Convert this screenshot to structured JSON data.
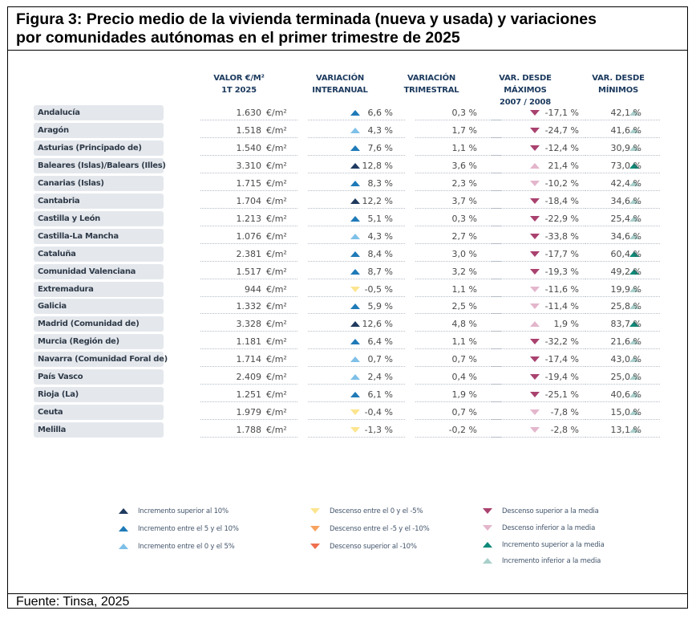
{
  "figure": {
    "title_line1": "Figura 3: Precio medio de la vivienda terminada (nueva y usada) y variaciones",
    "title_line2": "por comunidades autónomas en el primer trimestre de 2025",
    "source": "Fuente: Tinsa, 2025"
  },
  "colors": {
    "inc_gt10": "#1f3a5f",
    "inc_5_10": "#1f7ab8",
    "inc_0_5": "#7ec0e8",
    "dec_0_5": "#fde58f",
    "dec_5_10": "#f6a35e",
    "dec_gt10": "#ef6f4f",
    "dec_above_avg": "#a9426f",
    "dec_below_avg": "#e3b6cc",
    "inc_above_avg": "#0e8a7a",
    "inc_below_avg": "#a9cfcb"
  },
  "chart_data": {
    "type": "table",
    "columns": [
      {
        "line1": "VALOR €/M²",
        "line2": "1T 2025"
      },
      {
        "line1": "VARIACIÓN",
        "line2": "INTERANUAL"
      },
      {
        "line1": "VARIACIÓN",
        "line2": "TRIMESTRAL"
      },
      {
        "line1": "VAR. DESDE MÁXIMOS",
        "line2": "2007 / 2008"
      },
      {
        "line1": "VAR. DESDE",
        "line2": "MÍNIMOS"
      }
    ],
    "unit": "€/m²",
    "rows": [
      {
        "name": "Andalucía",
        "valor": "1.630",
        "interanual": "6,6 %",
        "inter_cat": "inc_5_10",
        "trimestral": "0,3 %",
        "maximos": "-17,1 %",
        "max_cat": "dec_above_avg",
        "minimos": "42,1 %",
        "min_cat": "inc_below_avg"
      },
      {
        "name": "Aragón",
        "valor": "1.518",
        "interanual": "4,3 %",
        "inter_cat": "inc_0_5",
        "trimestral": "1,7 %",
        "maximos": "-24,7 %",
        "max_cat": "dec_above_avg",
        "minimos": "41,6 %",
        "min_cat": "inc_below_avg"
      },
      {
        "name": "Asturias (Principado de)",
        "valor": "1.540",
        "interanual": "7,6 %",
        "inter_cat": "inc_5_10",
        "trimestral": "1,1 %",
        "maximos": "-12,4 %",
        "max_cat": "dec_above_avg",
        "minimos": "30,9 %",
        "min_cat": "inc_below_avg"
      },
      {
        "name": "Baleares (Islas)/Balears (Illes)",
        "valor": "3.310",
        "interanual": "12,8 %",
        "inter_cat": "inc_gt10",
        "trimestral": "3,6 %",
        "maximos": "21,4 %",
        "max_cat": "dec_below_avg",
        "max_dir": "up",
        "minimos": "73,0 %",
        "min_cat": "inc_above_avg"
      },
      {
        "name": "Canarias (Islas)",
        "valor": "1.715",
        "interanual": "8,3 %",
        "inter_cat": "inc_5_10",
        "trimestral": "2,3 %",
        "maximos": "-10,2 %",
        "max_cat": "dec_below_avg",
        "minimos": "42,4 %",
        "min_cat": "inc_below_avg"
      },
      {
        "name": "Cantabria",
        "valor": "1.704",
        "interanual": "12,2 %",
        "inter_cat": "inc_gt10",
        "trimestral": "3,7 %",
        "maximos": "-18,4 %",
        "max_cat": "dec_above_avg",
        "minimos": "34,6 %",
        "min_cat": "inc_below_avg"
      },
      {
        "name": "Castilla y León",
        "valor": "1.213",
        "interanual": "5,1 %",
        "inter_cat": "inc_5_10",
        "trimestral": "0,3 %",
        "maximos": "-22,9 %",
        "max_cat": "dec_above_avg",
        "minimos": "25,4 %",
        "min_cat": "inc_below_avg"
      },
      {
        "name": "Castilla-La Mancha",
        "valor": "1.076",
        "interanual": "4,3 %",
        "inter_cat": "inc_0_5",
        "trimestral": "2,7 %",
        "maximos": "-33,8 %",
        "max_cat": "dec_above_avg",
        "minimos": "34,6 %",
        "min_cat": "inc_below_avg"
      },
      {
        "name": "Cataluña",
        "valor": "2.381",
        "interanual": "8,4 %",
        "inter_cat": "inc_5_10",
        "trimestral": "3,0 %",
        "maximos": "-17,7 %",
        "max_cat": "dec_above_avg",
        "minimos": "60,4 %",
        "min_cat": "inc_above_avg"
      },
      {
        "name": "Comunidad Valenciana",
        "valor": "1.517",
        "interanual": "8,7 %",
        "inter_cat": "inc_5_10",
        "trimestral": "3,2 %",
        "maximos": "-19,3 %",
        "max_cat": "dec_above_avg",
        "minimos": "49,2 %",
        "min_cat": "inc_above_avg"
      },
      {
        "name": "Extremadura",
        "valor": "944",
        "interanual": "-0,5 %",
        "inter_cat": "dec_0_5",
        "trimestral": "1,1 %",
        "maximos": "-11,6 %",
        "max_cat": "dec_below_avg",
        "minimos": "19,9 %",
        "min_cat": "inc_below_avg"
      },
      {
        "name": "Galicia",
        "valor": "1.332",
        "interanual": "5,9 %",
        "inter_cat": "inc_5_10",
        "trimestral": "2,5 %",
        "maximos": "-11,4 %",
        "max_cat": "dec_below_avg",
        "minimos": "25,8 %",
        "min_cat": "inc_below_avg"
      },
      {
        "name": "Madrid (Comunidad de)",
        "valor": "3.328",
        "interanual": "12,6 %",
        "inter_cat": "inc_gt10",
        "trimestral": "4,8 %",
        "maximos": "1,9 %",
        "max_cat": "dec_below_avg",
        "max_dir": "up",
        "minimos": "83,7 %",
        "min_cat": "inc_above_avg"
      },
      {
        "name": "Murcia (Región de)",
        "valor": "1.181",
        "interanual": "6,4 %",
        "inter_cat": "inc_5_10",
        "trimestral": "1,1 %",
        "maximos": "-32,2 %",
        "max_cat": "dec_above_avg",
        "minimos": "21,6 %",
        "min_cat": "inc_below_avg"
      },
      {
        "name": "Navarra (Comunidad Foral de)",
        "valor": "1.714",
        "interanual": "0,7 %",
        "inter_cat": "inc_0_5",
        "trimestral": "0,7 %",
        "maximos": "-17,4 %",
        "max_cat": "dec_above_avg",
        "minimos": "43,0 %",
        "min_cat": "inc_below_avg"
      },
      {
        "name": "País Vasco",
        "valor": "2.409",
        "interanual": "2,4 %",
        "inter_cat": "inc_0_5",
        "trimestral": "0,4 %",
        "maximos": "-19,4 %",
        "max_cat": "dec_above_avg",
        "minimos": "25,0 %",
        "min_cat": "inc_below_avg"
      },
      {
        "name": "Rioja (La)",
        "valor": "1.251",
        "interanual": "6,1 %",
        "inter_cat": "inc_5_10",
        "trimestral": "1,9 %",
        "maximos": "-25,1 %",
        "max_cat": "dec_above_avg",
        "minimos": "40,6 %",
        "min_cat": "inc_below_avg"
      },
      {
        "name": "Ceuta",
        "valor": "1.979",
        "interanual": "-0,4 %",
        "inter_cat": "dec_0_5",
        "trimestral": "0,7 %",
        "maximos": "-7,8 %",
        "max_cat": "dec_below_avg",
        "minimos": "15,0 %",
        "min_cat": "inc_below_avg"
      },
      {
        "name": "Melilla",
        "valor": "1.788",
        "interanual": "-1,3 %",
        "inter_cat": "dec_0_5",
        "trimestral": "-0,2 %",
        "maximos": "-2,8 %",
        "max_cat": "dec_below_avg",
        "minimos": "13,1 %",
        "min_cat": "inc_below_avg"
      }
    ],
    "legend": [
      {
        "label": "Incremento superior al 10%",
        "cat": "inc_gt10",
        "dir": "up"
      },
      {
        "label": "Incremento entre el 5 y el 10%",
        "cat": "inc_5_10",
        "dir": "up"
      },
      {
        "label": "Incremento entre el 0 y el 5%",
        "cat": "inc_0_5",
        "dir": "up"
      },
      {
        "label": "Descenso entre el 0 y el -5%",
        "cat": "dec_0_5",
        "dir": "down"
      },
      {
        "label": "Descenso entre el -5 y el -10%",
        "cat": "dec_5_10",
        "dir": "down"
      },
      {
        "label": "Descenso superior al -10%",
        "cat": "dec_gt10",
        "dir": "down"
      },
      {
        "label": "Descenso superior a la media",
        "cat": "dec_above_avg",
        "dir": "down"
      },
      {
        "label": "Descenso inferior a la media",
        "cat": "dec_below_avg",
        "dir": "down"
      },
      {
        "label": "Incremento superior a la media",
        "cat": "inc_above_avg",
        "dir": "up"
      },
      {
        "label": "Incremento inferior a la media",
        "cat": "inc_below_avg",
        "dir": "up"
      }
    ]
  }
}
